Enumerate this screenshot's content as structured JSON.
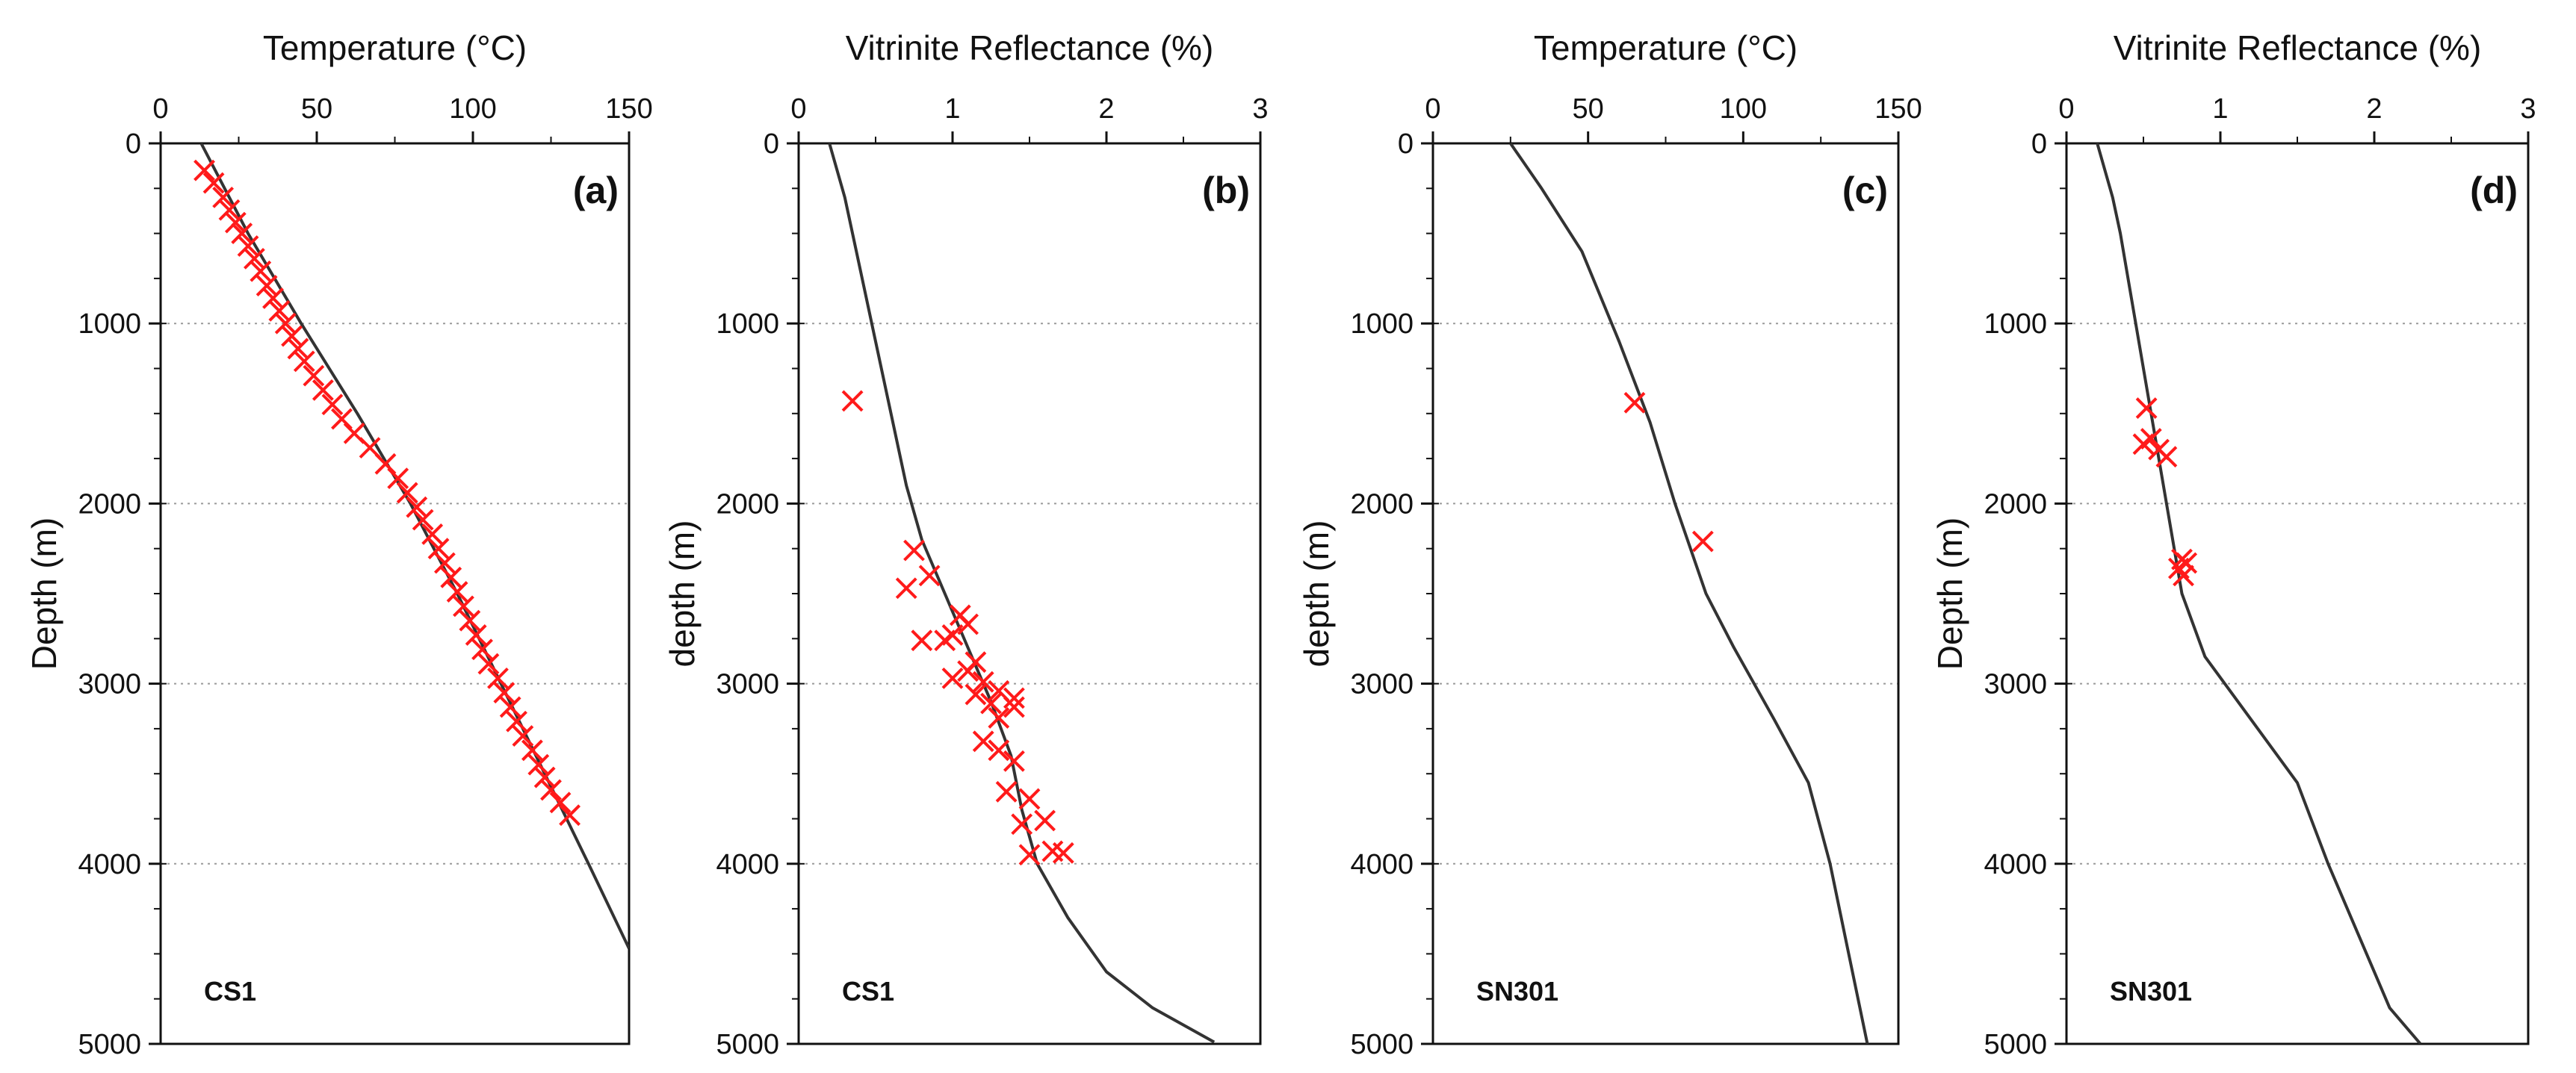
{
  "chart_data": [
    {
      "type": "scatter",
      "panel_label": "(a)",
      "well": "CS1",
      "xlabel": "Temperature (°C)",
      "ylabel": "Depth (m)",
      "xlim": [
        0,
        150
      ],
      "ylim": [
        0,
        5000
      ],
      "xticks": [
        0,
        50,
        100,
        150
      ],
      "yticks": [
        0,
        1000,
        2000,
        3000,
        4000,
        5000
      ],
      "grid": "horizontal-dotted",
      "series": [
        {
          "name": "modeled",
          "kind": "line",
          "color": "#333333",
          "points": [
            [
              13,
              0
            ],
            [
              28,
              500
            ],
            [
              45,
              1000
            ],
            [
              63,
              1500
            ],
            [
              80,
              2000
            ],
            [
              95,
              2500
            ],
            [
              109,
              3000
            ],
            [
              123,
              3500
            ],
            [
              137,
              4000
            ],
            [
              150,
              4470
            ]
          ]
        },
        {
          "name": "measured",
          "kind": "marker",
          "marker": "x",
          "color": "#ff1a1a",
          "points": [
            [
              14,
              150
            ],
            [
              17,
              220
            ],
            [
              20,
              300
            ],
            [
              22,
              370
            ],
            [
              24,
              440
            ],
            [
              26,
              500
            ],
            [
              28,
              570
            ],
            [
              30,
              640
            ],
            [
              32,
              710
            ],
            [
              34,
              790
            ],
            [
              36,
              860
            ],
            [
              38,
              930
            ],
            [
              40,
              1000
            ],
            [
              42,
              1070
            ],
            [
              44,
              1140
            ],
            [
              46,
              1210
            ],
            [
              49,
              1290
            ],
            [
              52,
              1370
            ],
            [
              55,
              1450
            ],
            [
              58,
              1530
            ],
            [
              62,
              1610
            ],
            [
              67,
              1690
            ],
            [
              72,
              1780
            ],
            [
              76,
              1860
            ],
            [
              79,
              1940
            ],
            [
              82,
              2020
            ],
            [
              84,
              2090
            ],
            [
              87,
              2170
            ],
            [
              89,
              2250
            ],
            [
              91,
              2330
            ],
            [
              93,
              2410
            ],
            [
              95,
              2490
            ],
            [
              97,
              2570
            ],
            [
              99,
              2650
            ],
            [
              101,
              2730
            ],
            [
              103,
              2810
            ],
            [
              105,
              2890
            ],
            [
              108,
              2970
            ],
            [
              110,
              3050
            ],
            [
              112,
              3130
            ],
            [
              114,
              3210
            ],
            [
              116,
              3290
            ],
            [
              119,
              3370
            ],
            [
              121,
              3450
            ],
            [
              123,
              3520
            ],
            [
              125,
              3590
            ],
            [
              128,
              3660
            ],
            [
              131,
              3730
            ]
          ]
        }
      ]
    },
    {
      "type": "scatter",
      "panel_label": "(b)",
      "well": "CS1",
      "xlabel": "Vitrinite Reflectance (%)",
      "ylabel": "depth (m)",
      "xlim": [
        0,
        3
      ],
      "ylim": [
        0,
        5000
      ],
      "xticks": [
        0,
        1,
        2,
        3
      ],
      "yticks": [
        0,
        1000,
        2000,
        3000,
        4000,
        5000
      ],
      "grid": "horizontal-dotted",
      "series": [
        {
          "name": "modeled",
          "kind": "line",
          "color": "#333333",
          "points": [
            [
              0.2,
              0
            ],
            [
              0.3,
              300
            ],
            [
              0.4,
              700
            ],
            [
              0.5,
              1100
            ],
            [
              0.6,
              1500
            ],
            [
              0.7,
              1900
            ],
            [
              0.8,
              2200
            ],
            [
              0.95,
              2500
            ],
            [
              1.1,
              2800
            ],
            [
              1.25,
              3100
            ],
            [
              1.38,
              3400
            ],
            [
              1.45,
              3700
            ],
            [
              1.55,
              4000
            ],
            [
              1.75,
              4300
            ],
            [
              2.0,
              4600
            ],
            [
              2.3,
              4800
            ],
            [
              2.7,
              4990
            ]
          ]
        },
        {
          "name": "measured",
          "kind": "marker",
          "marker": "x",
          "color": "#ff1a1a",
          "points": [
            [
              0.35,
              1430
            ],
            [
              0.75,
              2260
            ],
            [
              0.85,
              2400
            ],
            [
              0.7,
              2470
            ],
            [
              1.05,
              2620
            ],
            [
              1.1,
              2670
            ],
            [
              1.0,
              2730
            ],
            [
              0.95,
              2760
            ],
            [
              0.8,
              2760
            ],
            [
              1.15,
              2880
            ],
            [
              1.1,
              2930
            ],
            [
              1.0,
              2970
            ],
            [
              1.2,
              2990
            ],
            [
              1.3,
              3040
            ],
            [
              1.15,
              3060
            ],
            [
              1.4,
              3080
            ],
            [
              1.25,
              3110
            ],
            [
              1.4,
              3130
            ],
            [
              1.3,
              3190
            ],
            [
              1.2,
              3320
            ],
            [
              1.3,
              3370
            ],
            [
              1.4,
              3430
            ],
            [
              1.35,
              3600
            ],
            [
              1.5,
              3640
            ],
            [
              1.6,
              3760
            ],
            [
              1.45,
              3780
            ],
            [
              1.65,
              3930
            ],
            [
              1.72,
              3940
            ],
            [
              1.5,
              3950
            ]
          ]
        }
      ]
    },
    {
      "type": "scatter",
      "panel_label": "(c)",
      "well": "SN301",
      "xlabel": "Temperature (°C)",
      "ylabel": "depth (m)",
      "xlim": [
        0,
        150
      ],
      "ylim": [
        0,
        5000
      ],
      "xticks": [
        0,
        50,
        100,
        150
      ],
      "yticks": [
        0,
        1000,
        2000,
        3000,
        4000,
        5000
      ],
      "grid": "horizontal-dotted",
      "series": [
        {
          "name": "modeled",
          "kind": "line",
          "color": "#333333",
          "points": [
            [
              25,
              0
            ],
            [
              35,
              250
            ],
            [
              48,
              600
            ],
            [
              60,
              1100
            ],
            [
              70,
              1550
            ],
            [
              78,
              2000
            ],
            [
              88,
              2500
            ],
            [
              97,
              2800
            ],
            [
              110,
              3200
            ],
            [
              121,
              3550
            ],
            [
              128,
              4000
            ],
            [
              134,
              4500
            ],
            [
              140,
              5000
            ]
          ]
        },
        {
          "name": "measured",
          "kind": "marker",
          "marker": "x",
          "color": "#ff1a1a",
          "points": [
            [
              65,
              1440
            ],
            [
              87,
              2210
            ]
          ]
        }
      ]
    },
    {
      "type": "scatter",
      "panel_label": "(d)",
      "well": "SN301",
      "xlabel": "Vitrinite Reflectance (%)",
      "ylabel": "Depth (m)",
      "xlim": [
        0,
        3
      ],
      "ylim": [
        0,
        5000
      ],
      "xticks": [
        0,
        1,
        2,
        3
      ],
      "yticks": [
        0,
        1000,
        2000,
        3000,
        4000,
        5000
      ],
      "grid": "horizontal-dotted",
      "series": [
        {
          "name": "modeled",
          "kind": "line",
          "color": "#333333",
          "points": [
            [
              0.2,
              0
            ],
            [
              0.3,
              300
            ],
            [
              0.35,
              500
            ],
            [
              0.45,
              1000
            ],
            [
              0.55,
              1500
            ],
            [
              0.65,
              2000
            ],
            [
              0.75,
              2500
            ],
            [
              0.9,
              2850
            ],
            [
              1.2,
              3200
            ],
            [
              1.5,
              3550
            ],
            [
              1.7,
              4000
            ],
            [
              1.9,
              4400
            ],
            [
              2.1,
              4800
            ],
            [
              2.3,
              5000
            ]
          ]
        },
        {
          "name": "measured",
          "kind": "marker",
          "marker": "x",
          "color": "#ff1a1a",
          "points": [
            [
              0.52,
              1470
            ],
            [
              0.55,
              1640
            ],
            [
              0.5,
              1670
            ],
            [
              0.6,
              1700
            ],
            [
              0.65,
              1740
            ],
            [
              0.75,
              2310
            ],
            [
              0.78,
              2330
            ],
            [
              0.73,
              2360
            ],
            [
              0.76,
              2400
            ]
          ]
        }
      ]
    }
  ]
}
